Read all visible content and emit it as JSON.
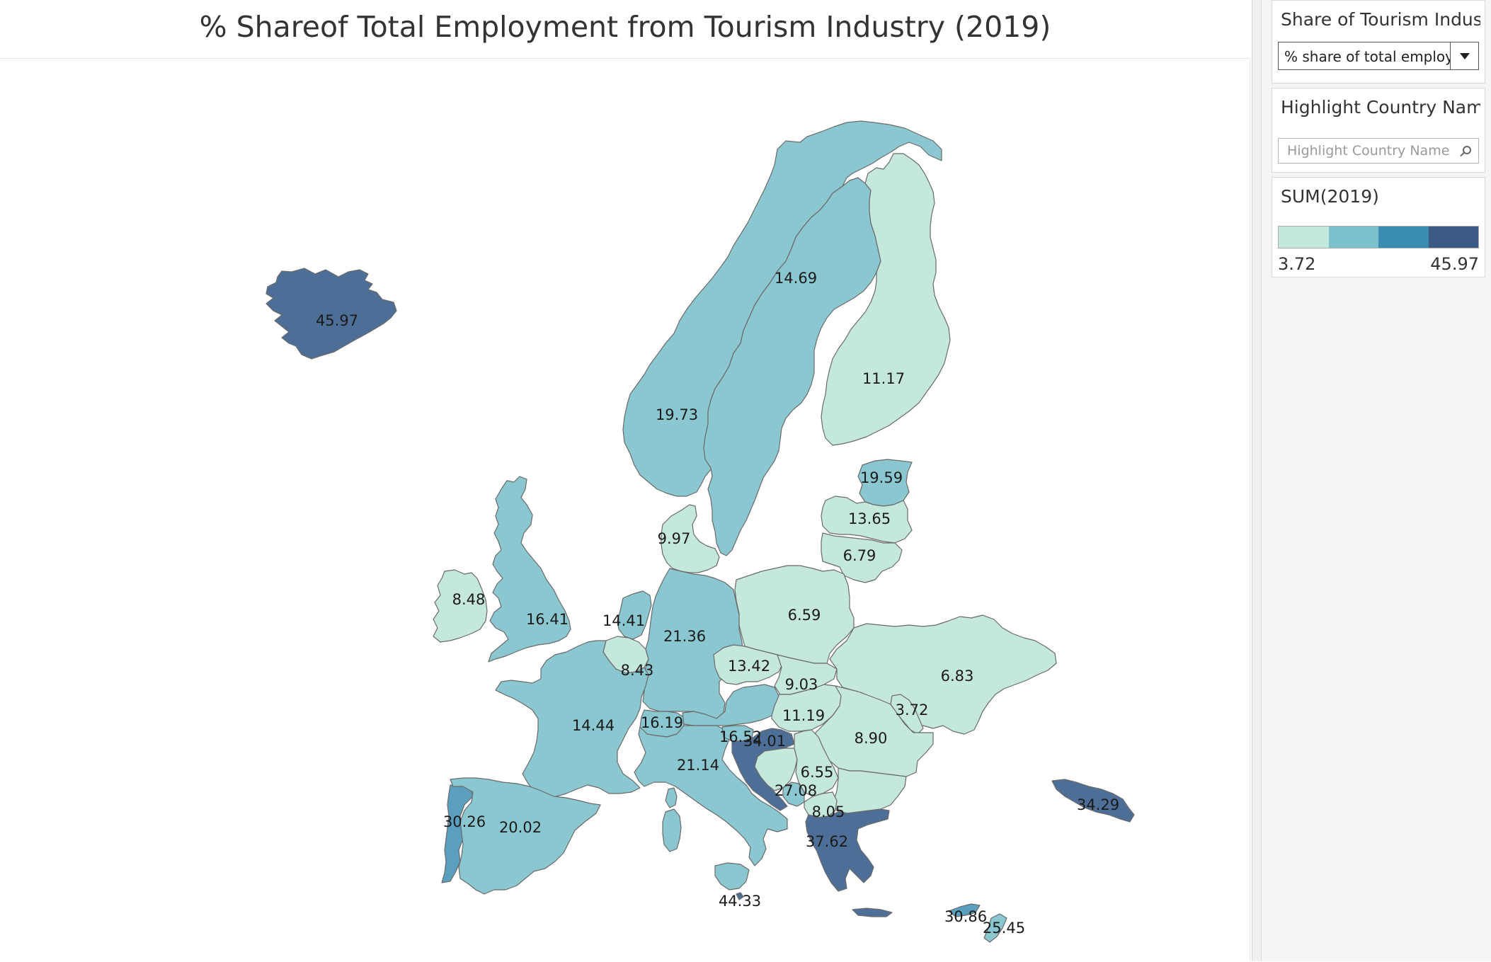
{
  "title": "%  Shareof Total Employment from Tourism Industry (2019)",
  "filter": {
    "title": "Share of Tourism Indust...",
    "selected": "% share of total employ..."
  },
  "highlight": {
    "title": "Highlight Country Name",
    "placeholder": "Highlight Country Name"
  },
  "legend": {
    "title": "SUM(2019)",
    "min": "3.72",
    "max": "45.97",
    "colors": [
      "#c5e8dd",
      "#7cc0cb",
      "#3a8cb0",
      "#3b5b85"
    ]
  },
  "map_colors": {
    "light": "#c5e8dd",
    "medium": "#8ac7d1",
    "strong": "#5b9fbe",
    "dark": "#4d6f97",
    "border": "#6a6a6a"
  },
  "regions": [
    {
      "name": "Iceland",
      "value": "45.97"
    },
    {
      "name": "Norway",
      "value": "19.73"
    },
    {
      "name": "Sweden",
      "value": "14.69"
    },
    {
      "name": "Finland",
      "value": "11.17"
    },
    {
      "name": "Estonia",
      "value": "19.59"
    },
    {
      "name": "Latvia",
      "value": "13.65"
    },
    {
      "name": "Lithuania",
      "value": "6.79"
    },
    {
      "name": "Denmark",
      "value": "9.97"
    },
    {
      "name": "Ireland",
      "value": "8.48"
    },
    {
      "name": "United Kingdom",
      "value": "16.41"
    },
    {
      "name": "Netherlands",
      "value": "14.41"
    },
    {
      "name": "Belgium",
      "value": "8.43"
    },
    {
      "name": "Germany",
      "value": "21.36"
    },
    {
      "name": "Poland",
      "value": "6.59"
    },
    {
      "name": "Czechia",
      "value": "13.42"
    },
    {
      "name": "Slovakia",
      "value": "9.03"
    },
    {
      "name": "Hungary",
      "value": "11.19"
    },
    {
      "name": "Ukraine",
      "value": "6.83"
    },
    {
      "name": "Moldova",
      "value": "3.72"
    },
    {
      "name": "Romania",
      "value": "8.90"
    },
    {
      "name": "France",
      "value": "14.44"
    },
    {
      "name": "Switzerland",
      "value": "16.19"
    },
    {
      "name": "Austria",
      "value": ""
    },
    {
      "name": "Italy",
      "value": "21.14"
    },
    {
      "name": "Slovenia",
      "value": "16.52"
    },
    {
      "name": "Croatia",
      "value": "34.01"
    },
    {
      "name": "Serbia",
      "value": "6.55"
    },
    {
      "name": "Montenegro",
      "value": "27.08"
    },
    {
      "name": "North Macedonia",
      "value": "8.05"
    },
    {
      "name": "Greece",
      "value": "37.62"
    },
    {
      "name": "Portugal",
      "value": "30.26"
    },
    {
      "name": "Spain",
      "value": "20.02"
    },
    {
      "name": "Malta",
      "value": "44.33"
    },
    {
      "name": "Georgia",
      "value": "34.29"
    },
    {
      "name": "Cyprus North",
      "value": "30.86"
    },
    {
      "name": "Cyprus",
      "value": "25.45"
    }
  ]
}
